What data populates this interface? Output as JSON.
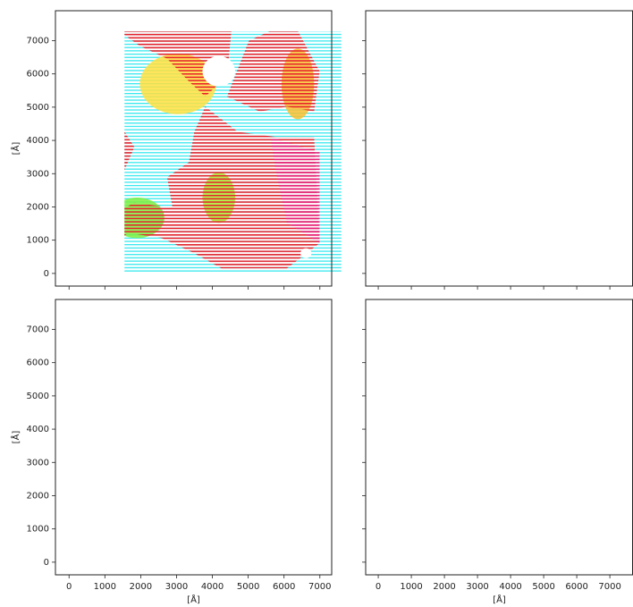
{
  "chart_data": [
    {
      "type": "quiver",
      "xlim": [
        -380,
        7330
      ],
      "ylim": [
        -380,
        7900
      ],
      "xticks": [
        0,
        1000,
        2000,
        3000,
        4000,
        5000,
        6000,
        7000
      ],
      "yticks": [
        0,
        1000,
        2000,
        3000,
        4000,
        5000,
        6000,
        7000
      ],
      "ylabel": "[Å]",
      "show_xtick_labels": false,
      "show_ytick_labels": true
    },
    {
      "type": "quiver",
      "xlim": [
        -380,
        7700
      ],
      "ylim": [
        -380,
        7900
      ],
      "xticks": [
        0,
        1000,
        2000,
        3000,
        4000,
        5000,
        6000,
        7000
      ],
      "yticks": [
        0,
        1000,
        2000,
        3000,
        4000,
        5000,
        6000,
        7000
      ],
      "show_xtick_labels": false,
      "show_ytick_labels": false
    },
    {
      "type": "quiver",
      "xlim": [
        -380,
        7330
      ],
      "ylim": [
        -380,
        7900
      ],
      "xticks": [
        0,
        1000,
        2000,
        3000,
        4000,
        5000,
        6000,
        7000
      ],
      "yticks": [
        0,
        1000,
        2000,
        3000,
        4000,
        5000,
        6000,
        7000
      ],
      "xlabel": "[Å]",
      "ylabel": "[Å]",
      "show_xtick_labels": true,
      "show_ytick_labels": true
    },
    {
      "type": "quiver",
      "xlim": [
        -380,
        7700
      ],
      "ylim": [
        -380,
        7900
      ],
      "xticks": [
        0,
        1000,
        2000,
        3000,
        4000,
        5000,
        6000,
        7000
      ],
      "yticks": [
        0,
        1000,
        2000,
        3000,
        4000,
        5000,
        6000,
        7000
      ],
      "xlabel": "[Å]",
      "show_xtick_labels": true,
      "show_ytick_labels": false
    }
  ]
}
